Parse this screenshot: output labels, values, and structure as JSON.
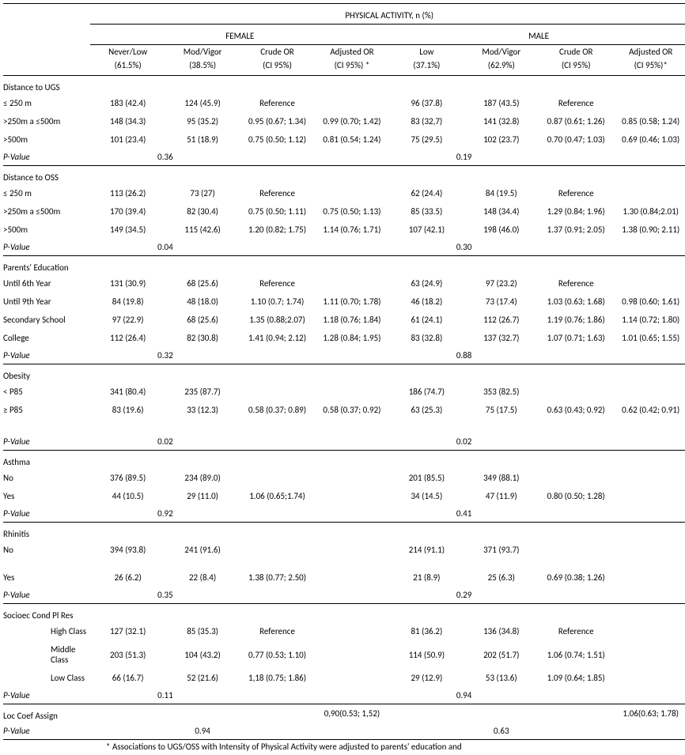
{
  "header": {
    "super": "PHYSICAL ACTIVITY, n (%)",
    "female": "FEMALE",
    "male": "MALE",
    "cols_f": [
      "Never/Low",
      "Mod/Vigor",
      "Crude OR",
      "Adjusted OR"
    ],
    "cols_f2": [
      "(61.5%)",
      "(38.5%)",
      "(CI 95%)",
      "(CI 95%) *"
    ],
    "cols_m": [
      "Low",
      "Mod/Vigor",
      "Crude OR",
      "Adjusted OR"
    ],
    "cols_m2": [
      "(37.1%)",
      "(62.9%)",
      "(CI 95%)",
      "(CI 95%)*"
    ]
  },
  "sections": [
    {
      "title": "Distance to UGS",
      "rows": [
        {
          "label": "≤ 250 m",
          "f": [
            "183 (42.4)",
            "124 (45.9)",
            "Reference",
            ""
          ],
          "m": [
            "96 (37.8)",
            "187 (43.5)",
            "Reference",
            ""
          ]
        },
        {
          "label": ">250m a  ≤500m",
          "f": [
            "148 (34.3)",
            "95 (35.2)",
            "0.95 (0.67; 1.34)",
            "0.99 (0.70; 1.42)"
          ],
          "m": [
            "83 (32,7)",
            "141 (32.8)",
            "0.87 (0.61; 1.26)",
            "0.85 (0.58; 1.24)"
          ]
        },
        {
          "label": ">500m",
          "f": [
            "101 (23.4)",
            "51 (18.9)",
            "0.75 (0.50; 1.12)",
            "0.81 (0.54; 1.24)"
          ],
          "m": [
            "75 (29.5)",
            "102 (23.7)",
            "0.70 (0.47; 1.03)",
            "0.69 (0.46; 1.03)"
          ]
        }
      ],
      "pval_f": "0.36",
      "pval_m": "0.19"
    },
    {
      "title": "Distance to OSS",
      "rows": [
        {
          "label": "≤ 250 m",
          "f": [
            "113 (26.2)",
            "73 (27)",
            "Reference",
            ""
          ],
          "m": [
            "62 (24.4)",
            "84 (19.5)",
            "Reference",
            ""
          ]
        },
        {
          "label": ">250m a  ≤500m",
          "f": [
            "170 (39.4)",
            "82 (30.4)",
            "0.75 (0.50; 1.11)",
            "0.75 (0.50; 1.13)"
          ],
          "m": [
            "85 (33.5)",
            "148 (34.4)",
            "1.29 (0.84; 1.96)",
            "1.30 (0.84;2.01)"
          ]
        },
        {
          "label": ">500m",
          "f": [
            "149 (34.5)",
            "115 (42.6)",
            "1.20 (0.82; 1.75)",
            "1.14 (0.76; 1.71)"
          ],
          "m": [
            "107 (42.1)",
            "198 (46.0)",
            "1.37 (0.91; 2.05)",
            "1.38 (0.90; 2.11)"
          ]
        }
      ],
      "pval_f": "0.04",
      "pval_m": "0.30"
    },
    {
      "title": "Parents' Education",
      "rows": [
        {
          "label": "Until 6th Year",
          "f": [
            "131 (30.9)",
            "68 (25.6)",
            "Reference",
            ""
          ],
          "m": [
            "63 (24.9)",
            "97 (23.2)",
            "Reference",
            ""
          ]
        },
        {
          "label": "Until 9th Year",
          "f": [
            "84 (19.8)",
            "48 (18.0)",
            "1.10 (0.7; 1.74)",
            "1.11 (0.70; 1.78)"
          ],
          "m": [
            "46 (18.2)",
            "73 (17.4)",
            "1.03 (0.63; 1.68)",
            "0.98 (0.60; 1.61)"
          ]
        },
        {
          "label": "Secondary School",
          "f": [
            "97 (22.9)",
            "68 (25.6)",
            "1.35 (0.88;2.07)",
            "1.18 (0.76; 1.84)"
          ],
          "m": [
            "61 (24.1)",
            "112 (26.7)",
            "1.19 (0.76; 1.86)",
            "1.14 (0.72; 1.80)"
          ]
        },
        {
          "label": "College",
          "f": [
            "112 (26.4)",
            "82 (30.8)",
            "1.41 (0.94; 2.12)",
            "1.28 (0.84; 1.95)"
          ],
          "m": [
            "83 (32.8)",
            "137 (32.7)",
            "1.07 (0.71; 1.63)",
            "1.01 (0.65; 1.55)"
          ]
        }
      ],
      "pval_f": "0.32",
      "pval_m": "0.88"
    },
    {
      "title": "Obesity",
      "rows": [
        {
          "label": "< P85",
          "f": [
            "341 (80.4)",
            "235 (87.7)",
            "",
            ""
          ],
          "m": [
            "186 (74.7)",
            "353 (82.5)",
            "",
            ""
          ]
        },
        {
          "label": "≥ P85",
          "f": [
            "83 (19.6)",
            "33 (12.3)",
            "0.58 (0.37; 0.89)",
            "0.58 (0.37; 0.92)"
          ],
          "m": [
            "63 (25.3)",
            "75 (17.5)",
            "0.63 (0.43; 0.92)",
            "0.62 (0.42; 0.91)"
          ]
        }
      ],
      "pval_f": "0.02",
      "pval_m": "0.02",
      "extra_gap": true
    },
    {
      "title": "Asthma",
      "rows": [
        {
          "label": "No",
          "f": [
            "376 (89.5)",
            "234 (89.0)",
            "",
            ""
          ],
          "m": [
            "201 (85.5)",
            "349 (88.1)",
            "",
            ""
          ]
        },
        {
          "label": "Yes",
          "f": [
            "44 (10.5)",
            "29 (11.0)",
            "1.06 (0.65;1.74)",
            ""
          ],
          "m": [
            "34 (14.5)",
            "47 (11.9)",
            "0.80 (0.50; 1.28)",
            ""
          ]
        }
      ],
      "pval_f": "0.92",
      "pval_m": "0.41"
    },
    {
      "title": "Rhinitis",
      "rows": [
        {
          "label": "No",
          "f": [
            "394 (93.8)",
            "241 (91.6)",
            "",
            ""
          ],
          "m": [
            "214 (91.1)",
            "371 (93.7)",
            "",
            ""
          ]
        },
        {
          "label": "Yes",
          "f": [
            "26 (6.2)",
            "22 (8.4)",
            "1.38 (0.77; 2.50)",
            ""
          ],
          "m": [
            "21 (8.9)",
            "25 (6.3)",
            "0.69 (0.38; 1.26)",
            ""
          ]
        }
      ],
      "pval_f": "0.35",
      "pval_m": "0.29",
      "gap_after_first": true
    },
    {
      "title": "Socioec Cond Pl Res",
      "rows": [
        {
          "label": "High Class",
          "f": [
            "127 (32.1)",
            "85 (35.3)",
            "Reference",
            ""
          ],
          "m": [
            "81 (36.2)",
            "136 (34.8)",
            "Reference",
            ""
          ],
          "indent": true
        },
        {
          "label": "Middle Class",
          "f": [
            "203 (51.3)",
            "104 (43.2)",
            "0.77 (0.53; 1.10)",
            ""
          ],
          "m": [
            "114 (50.9)",
            "202 (51.7)",
            "1.06 (0.74; 1.51)",
            ""
          ],
          "indent": true
        },
        {
          "label": "Low Class",
          "f": [
            "66 (16.7)",
            "52 (21.6)",
            "1,18 (0.75; 1.86)",
            ""
          ],
          "m": [
            "29 (12.9)",
            "53 (13.6)",
            "1.09 (0.64; 1.85)",
            ""
          ],
          "indent": true
        }
      ],
      "pval_f": "0.11",
      "pval_m": "0.94"
    }
  ],
  "loc": {
    "title": "Loc  Coef Assign",
    "f_adj": "0,90(0.53; 1,52)",
    "m_adj": "1.06(0.63; 1.78)",
    "pval_f": "0.94",
    "pval_m": "0.63"
  },
  "footnote": "* Associations to UGS/OSS with Intensity of Physical Activity were adjusted to parents' education and",
  "labels": {
    "pvalue": "P-Value"
  }
}
